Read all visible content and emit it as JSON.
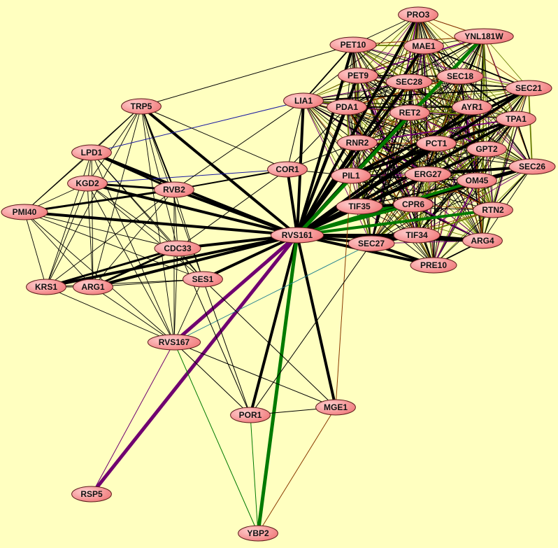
{
  "colors": {
    "background": "#ffffc0",
    "node_fill": "#ff9a9a",
    "node_stroke": "#5a1a1a",
    "edge_default": "#000000",
    "purple": "#700070",
    "green": "#007a00",
    "olive": "#667a00",
    "brown": "#8a3a00",
    "blue": "#1a1aa0",
    "teal": "#208090"
  },
  "nodes": [
    "PRO3",
    "YNL181W",
    "PET10",
    "MAE1",
    "PET9",
    "SEC28",
    "SEC18",
    "SEC21",
    "LIA1",
    "PDA1",
    "RET2",
    "AYR1",
    "TPA1",
    "TRP5",
    "RNR2",
    "PCT1",
    "GPT2",
    "LPD1",
    "COR1",
    "PIL1",
    "ERG27",
    "SEC26",
    "KGD2",
    "RVB2",
    "OM45",
    "TIF35",
    "CPR6",
    "RTN2",
    "PMI40",
    "RVS161",
    "TIF34",
    "ARG4",
    "SEC27",
    "CDC33",
    "PRE10",
    "SES1",
    "KRS1",
    "ARG1",
    "RVS167",
    "MGE1",
    "POR1",
    "RSP5",
    "YBP2"
  ],
  "dense_groups": [
    {
      "members": [
        "PRO3",
        "YNL181W",
        "PET10",
        "MAE1",
        "PET9",
        "SEC28",
        "SEC18",
        "SEC21",
        "LIA1",
        "PDA1",
        "RET2",
        "AYR1",
        "TPA1",
        "RNR2",
        "PCT1",
        "GPT2",
        "PIL1",
        "ERG27",
        "SEC26",
        "OM45",
        "TIF35",
        "CPR6",
        "RTN2",
        "TIF34",
        "ARG4",
        "SEC27",
        "PRE10"
      ],
      "color": "mixed"
    },
    {
      "members": [
        "TRP5",
        "LPD1",
        "KGD2",
        "PMI40",
        "KRS1",
        "ARG1",
        "CDC33",
        "RVB2",
        "SES1",
        "RVS167"
      ],
      "color": "black"
    }
  ],
  "edges": [
    {
      "a": "RVS161",
      "b": "TRP5",
      "w": 4,
      "c": "edge_default"
    },
    {
      "a": "RVS161",
      "b": "LPD1",
      "w": 4,
      "c": "edge_default"
    },
    {
      "a": "RVS161",
      "b": "KGD2",
      "w": 4,
      "c": "edge_default"
    },
    {
      "a": "RVS161",
      "b": "PMI40",
      "w": 4,
      "c": "edge_default"
    },
    {
      "a": "RVS161",
      "b": "RVB2",
      "w": 4,
      "c": "edge_default"
    },
    {
      "a": "RVS161",
      "b": "CDC33",
      "w": 4,
      "c": "edge_default"
    },
    {
      "a": "RVS161",
      "b": "SES1",
      "w": 4,
      "c": "edge_default"
    },
    {
      "a": "RVS161",
      "b": "ARG1",
      "w": 4,
      "c": "edge_default"
    },
    {
      "a": "RVS161",
      "b": "KRS1",
      "w": 4,
      "c": "edge_default"
    },
    {
      "a": "RVS161",
      "b": "COR1",
      "w": 4,
      "c": "edge_default"
    },
    {
      "a": "RVS161",
      "b": "LIA1",
      "w": 4,
      "c": "edge_default"
    },
    {
      "a": "RVS161",
      "b": "PET10",
      "w": 4,
      "c": "edge_default"
    },
    {
      "a": "RVS161",
      "b": "PRO3",
      "w": 4,
      "c": "edge_default"
    },
    {
      "a": "RVS161",
      "b": "MAE1",
      "w": 4,
      "c": "edge_default"
    },
    {
      "a": "RVS161",
      "b": "PET9",
      "w": 4,
      "c": "edge_default"
    },
    {
      "a": "RVS161",
      "b": "SEC28",
      "w": 4,
      "c": "edge_default"
    },
    {
      "a": "RVS161",
      "b": "PDA1",
      "w": 4,
      "c": "edge_default"
    },
    {
      "a": "RVS161",
      "b": "RET2",
      "w": 4,
      "c": "edge_default"
    },
    {
      "a": "RVS161",
      "b": "RNR2",
      "w": 4,
      "c": "edge_default"
    },
    {
      "a": "RVS161",
      "b": "PCT1",
      "w": 4,
      "c": "edge_default"
    },
    {
      "a": "RVS161",
      "b": "PIL1",
      "w": 4,
      "c": "edge_default"
    },
    {
      "a": "RVS161",
      "b": "ERG27",
      "w": 4,
      "c": "edge_default"
    },
    {
      "a": "RVS161",
      "b": "GPT2",
      "w": 4,
      "c": "edge_default"
    },
    {
      "a": "RVS161",
      "b": "AYR1",
      "w": 4,
      "c": "edge_default"
    },
    {
      "a": "RVS161",
      "b": "TPA1",
      "w": 4,
      "c": "edge_default"
    },
    {
      "a": "RVS161",
      "b": "SEC21",
      "w": 4,
      "c": "edge_default"
    },
    {
      "a": "RVS161",
      "b": "SEC26",
      "w": 4,
      "c": "edge_default"
    },
    {
      "a": "RVS161",
      "b": "TIF35",
      "w": 4,
      "c": "edge_default"
    },
    {
      "a": "RVS161",
      "b": "TIF34",
      "w": 4,
      "c": "edge_default"
    },
    {
      "a": "RVS161",
      "b": "SEC27",
      "w": 4,
      "c": "edge_default"
    },
    {
      "a": "RVS161",
      "b": "ARG4",
      "w": 4,
      "c": "edge_default"
    },
    {
      "a": "RVS161",
      "b": "PRE10",
      "w": 4,
      "c": "edge_default"
    },
    {
      "a": "RVS161",
      "b": "MGE1",
      "w": 4,
      "c": "edge_default"
    },
    {
      "a": "RVS161",
      "b": "POR1",
      "w": 4,
      "c": "edge_default"
    },
    {
      "a": "RVS161",
      "b": "YNL181W",
      "w": 5,
      "c": "green"
    },
    {
      "a": "RVS161",
      "b": "OM45",
      "w": 4,
      "c": "green"
    },
    {
      "a": "RVS161",
      "b": "RTN2",
      "w": 4,
      "c": "green"
    },
    {
      "a": "RVS161",
      "b": "CPR6",
      "w": 4,
      "c": "green"
    },
    {
      "a": "RVS161",
      "b": "YBP2",
      "w": 5,
      "c": "green"
    },
    {
      "a": "RVS161",
      "b": "RVS167",
      "w": 5,
      "c": "purple"
    },
    {
      "a": "RVS161",
      "b": "RSP5",
      "w": 5,
      "c": "purple"
    },
    {
      "a": "RVS167",
      "b": "RSP5",
      "w": 1,
      "c": "purple"
    },
    {
      "a": "RVS167",
      "b": "YBP2",
      "w": 1,
      "c": "green"
    },
    {
      "a": "POR1",
      "b": "YBP2",
      "w": 1,
      "c": "green"
    },
    {
      "a": "MGE1",
      "b": "YBP2",
      "w": 1,
      "c": "brown"
    },
    {
      "a": "MGE1",
      "b": "PIL1",
      "w": 1,
      "c": "brown"
    },
    {
      "a": "POR1",
      "b": "MGE1",
      "w": 1,
      "c": "edge_default"
    },
    {
      "a": "RVS167",
      "b": "SEC27",
      "w": 1,
      "c": "teal"
    },
    {
      "a": "RVS167",
      "b": "MGE1",
      "w": 1,
      "c": "edge_default"
    },
    {
      "a": "RVS167",
      "b": "POR1",
      "w": 1,
      "c": "edge_default"
    },
    {
      "a": "SES1",
      "b": "POR1",
      "w": 1,
      "c": "edge_default"
    },
    {
      "a": "SES1",
      "b": "MGE1",
      "w": 1,
      "c": "edge_default"
    },
    {
      "a": "CDC33",
      "b": "POR1",
      "w": 1,
      "c": "edge_default"
    },
    {
      "a": "POR1",
      "b": "SEC27",
      "w": 1,
      "c": "edge_default"
    },
    {
      "a": "LPD1",
      "b": "LIA1",
      "w": 1,
      "c": "blue"
    },
    {
      "a": "KGD2",
      "b": "COR1",
      "w": 1,
      "c": "blue"
    },
    {
      "a": "TRP5",
      "b": "PET10",
      "w": 1,
      "c": "edge_default"
    },
    {
      "a": "TRP5",
      "b": "COR1",
      "w": 1,
      "c": "edge_default"
    },
    {
      "a": "RVB2",
      "b": "COR1",
      "w": 2,
      "c": "edge_default"
    },
    {
      "a": "RVB2",
      "b": "LIA1",
      "w": 1,
      "c": "edge_default"
    },
    {
      "a": "CDC33",
      "b": "COR1",
      "w": 1,
      "c": "edge_default"
    },
    {
      "a": "KRS1",
      "b": "CDC33",
      "w": 3,
      "c": "edge_default"
    },
    {
      "a": "ARG1",
      "b": "CDC33",
      "w": 3,
      "c": "edge_default"
    },
    {
      "a": "KGD2",
      "b": "RVB2",
      "w": 3,
      "c": "edge_default"
    },
    {
      "a": "LPD1",
      "b": "RVB2",
      "w": 3,
      "c": "edge_default"
    },
    {
      "a": "PMI40",
      "b": "RVB2",
      "w": 3,
      "c": "edge_default"
    },
    {
      "a": "TRP5",
      "b": "RVB2",
      "w": 2,
      "c": "edge_default"
    },
    {
      "a": "COR1",
      "b": "PIL1",
      "w": 1,
      "c": "edge_default"
    },
    {
      "a": "COR1",
      "b": "LIA1",
      "w": 1,
      "c": "edge_default"
    },
    {
      "a": "COR1",
      "b": "PDA1",
      "w": 1,
      "c": "edge_default"
    },
    {
      "a": "COR1",
      "b": "RNR2",
      "w": 1,
      "c": "edge_default"
    },
    {
      "a": "SEC27",
      "b": "PRE10",
      "w": 4,
      "c": "edge_default"
    },
    {
      "a": "SEC27",
      "b": "TIF34",
      "w": 4,
      "c": "edge_default"
    },
    {
      "a": "TIF34",
      "b": "ARG4",
      "w": 4,
      "c": "edge_default"
    },
    {
      "a": "TIF35",
      "b": "CPR6",
      "w": 4,
      "c": "edge_default"
    },
    {
      "a": "ERG27",
      "b": "SEC26",
      "w": 4,
      "c": "edge_default"
    },
    {
      "a": "OM45",
      "b": "SEC26",
      "w": 4,
      "c": "edge_default"
    },
    {
      "a": "PIL1",
      "b": "TPA1",
      "w": 4,
      "c": "edge_default"
    },
    {
      "a": "PIL1",
      "b": "SEC21",
      "w": 4,
      "c": "edge_default"
    },
    {
      "a": "PRO3",
      "b": "YNL181W",
      "w": 1,
      "c": "brown"
    },
    {
      "a": "PET10",
      "b": "YNL181W",
      "w": 1,
      "c": "brown"
    }
  ]
}
